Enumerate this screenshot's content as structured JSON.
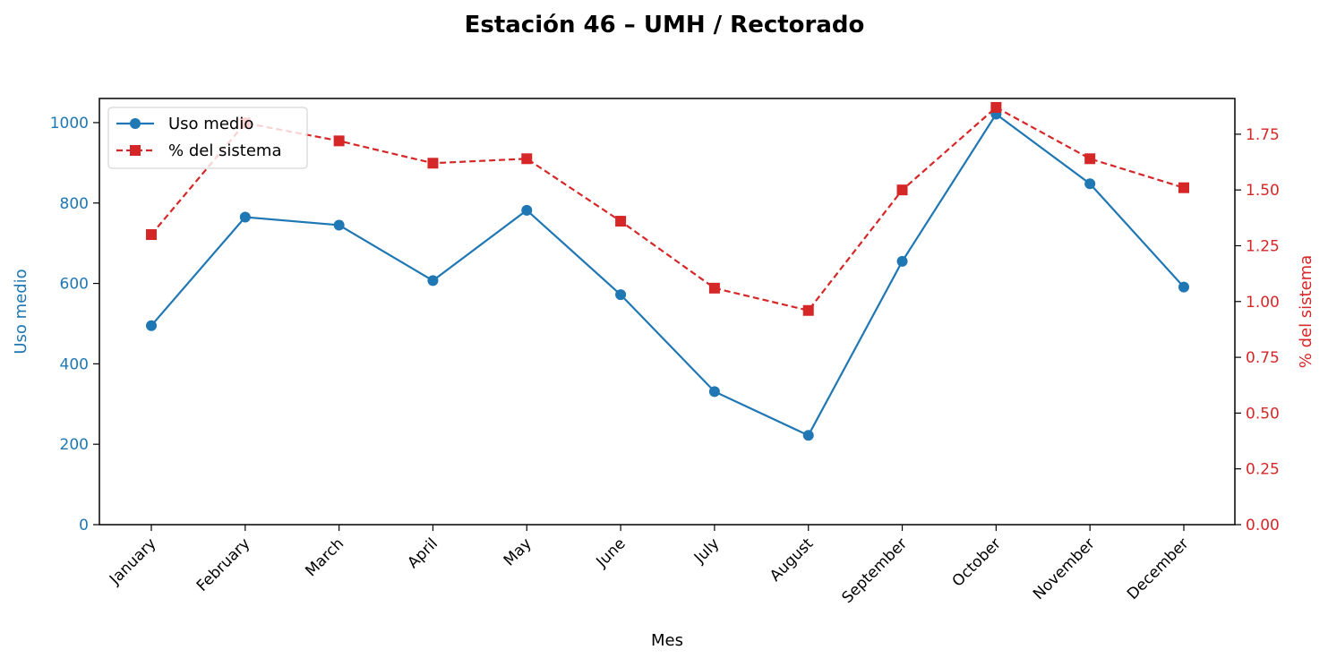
{
  "colors": {
    "uso": "#1f77b4",
    "pct": "#d62728"
  },
  "legend_placement": "upper-left",
  "chart_data": {
    "type": "line",
    "title": "Estación 46 – UMH / Rectorado",
    "xlabel": "Mes",
    "ylabel_left": "Uso medio",
    "ylabel_right": "% del sistema",
    "categories": [
      "January",
      "February",
      "March",
      "April",
      "May",
      "June",
      "July",
      "August",
      "September",
      "October",
      "November",
      "December"
    ],
    "ylim_left": [
      0,
      1060
    ],
    "ylim_right": [
      0,
      1.91
    ],
    "yticks_left": [
      "0",
      "200",
      "400",
      "600",
      "800",
      "1000"
    ],
    "yticks_right": [
      "0.00",
      "0.25",
      "0.50",
      "0.75",
      "1.00",
      "1.25",
      "1.50",
      "1.75"
    ],
    "grid": false,
    "series": [
      {
        "name": "Uso medio",
        "axis": "left",
        "marker": "circle",
        "linestyle": "solid",
        "values": [
          495,
          765,
          745,
          607,
          782,
          572,
          331,
          222,
          655,
          1021,
          848,
          591
        ]
      },
      {
        "name": "% del sistema",
        "axis": "right",
        "marker": "square",
        "linestyle": "dashed",
        "values": [
          1.3,
          1.8,
          1.72,
          1.62,
          1.64,
          1.36,
          1.06,
          0.96,
          1.5,
          1.87,
          1.64,
          1.51
        ]
      }
    ]
  }
}
